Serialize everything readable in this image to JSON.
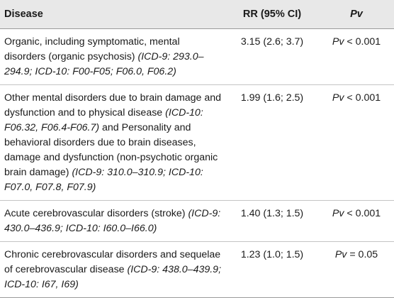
{
  "table": {
    "headers": {
      "disease": "Disease",
      "rr": "RR (95% CI)",
      "pv": "Pv"
    },
    "rows": [
      {
        "disease": "Organic, including symptomatic, mental disorders (organic psychosis)",
        "codes": "(ICD-9: 293.0–294.9; ICD-10: F00-F05; F06.0, F06.2)",
        "rr": "3.15 (2.6; 3.7)",
        "pv_label": "Pv",
        "pv_value": "< 0.001"
      },
      {
        "disease": "Other mental disorders due to brain damage and dysfunction and to physical disease",
        "codes": "(ICD-10: F06.32, F06.4-F06.7)",
        "disease_cont": "and Personality and behavioral disorders due to brain diseases, damage and dysfunction (non-psychotic organic brain damage)",
        "codes_cont": "(ICD-9: 310.0–310.9; ICD-10: F07.0, F07.8, F07.9)",
        "rr": "1.99 (1.6; 2.5)",
        "pv_label": "Pv",
        "pv_value": "< 0.001"
      },
      {
        "disease": "Acute cerebrovascular disorders (stroke)",
        "codes": "(ICD-9: 430.0–436.9; ICD-10: I60.0–I66.0)",
        "rr": "1.40 (1.3; 1.5)",
        "pv_label": "Pv",
        "pv_value": "< 0.001"
      },
      {
        "disease": "Chronic cerebrovascular disorders and sequelae of cerebrovascular disease",
        "codes": "(ICD-9: 438.0–439.9; ICD-10: I67, I69)",
        "rr": "1.23 (1.0; 1.5)",
        "pv_label": "Pv",
        "pv_value": "= 0.05"
      }
    ]
  },
  "colors": {
    "header_background": "#e8e8e8",
    "text": "#1a1a1a",
    "rule": "#c4c4c4"
  }
}
